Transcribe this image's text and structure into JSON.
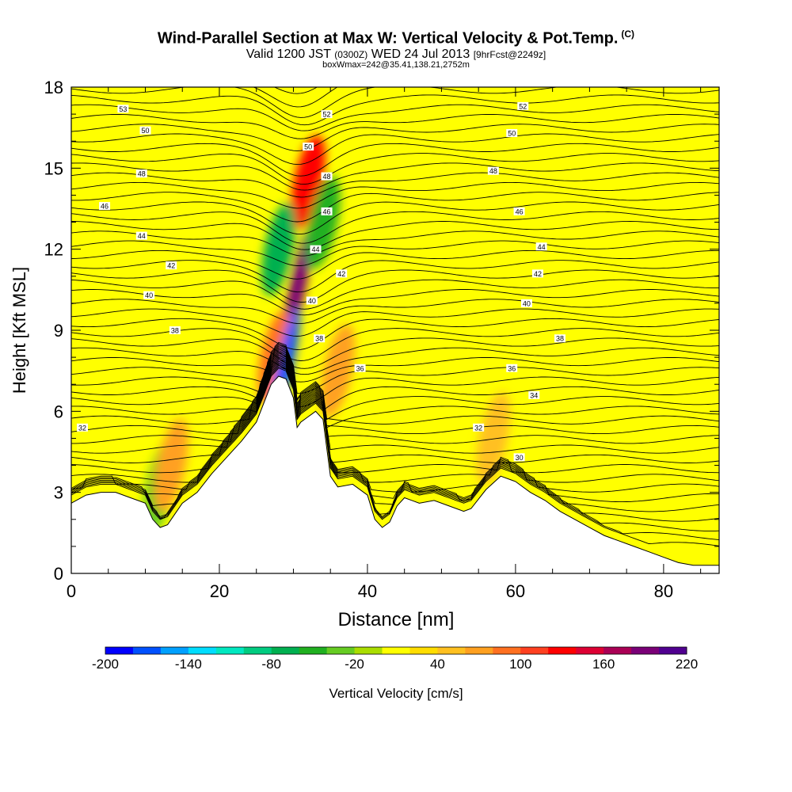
{
  "header": {
    "title": "Wind-Parallel Section at Max W: Vertical Velocity & Pot.Temp.",
    "copyright": "(C)",
    "valid_prefix": "Valid 1200 JST",
    "valid_utc": "(0300Z)",
    "valid_date": "WED 24 Jul 2013",
    "forecast": "[9hrFcst@2249z]",
    "box_info": "boxWmax=242@35.41,138.21,2752m"
  },
  "chart_data": {
    "type": "heatmap",
    "xlabel": "Distance [nm]",
    "ylabel": "Height [Kft MSL]",
    "xlim": [
      0,
      87.5
    ],
    "ylim": [
      0,
      18
    ],
    "xticks": [
      0,
      20,
      40,
      60,
      80
    ],
    "yticks": [
      0,
      3,
      6,
      9,
      12,
      15,
      18
    ],
    "colorbar": {
      "label": "Vertical Velocity [cm/s]",
      "tick_labels": [
        "-200",
        "-140",
        "-80",
        "-20",
        "40",
        "100",
        "160",
        "220"
      ],
      "colors": [
        "#0000ff",
        "#0050ff",
        "#00a0ff",
        "#00ddff",
        "#00e8c0",
        "#00cc80",
        "#00b050",
        "#20b020",
        "#66cc22",
        "#aadd00",
        "#ffff00",
        "#ffdd00",
        "#ffc020",
        "#ffa020",
        "#ff7020",
        "#ff4020",
        "#ff0000",
        "#dd0033",
        "#aa0055",
        "#7a0077",
        "#500090"
      ]
    },
    "terrain": [
      [
        0,
        2.6
      ],
      [
        2,
        2.9
      ],
      [
        4,
        3.0
      ],
      [
        6,
        3.0
      ],
      [
        8,
        2.8
      ],
      [
        10,
        2.6
      ],
      [
        11,
        2.0
      ],
      [
        12,
        1.7
      ],
      [
        13,
        1.8
      ],
      [
        14,
        2.2
      ],
      [
        15,
        2.6
      ],
      [
        17,
        3.0
      ],
      [
        19,
        3.7
      ],
      [
        21,
        4.3
      ],
      [
        23,
        4.9
      ],
      [
        25,
        5.6
      ],
      [
        26,
        6.3
      ],
      [
        27,
        7.0
      ],
      [
        28,
        7.3
      ],
      [
        29,
        7.2
      ],
      [
        30,
        6.5
      ],
      [
        30.5,
        5.4
      ],
      [
        31,
        5.6
      ],
      [
        32,
        5.8
      ],
      [
        33,
        6.0
      ],
      [
        34,
        5.7
      ],
      [
        35,
        3.6
      ],
      [
        36,
        3.2
      ],
      [
        38,
        3.3
      ],
      [
        40,
        2.9
      ],
      [
        41,
        2.0
      ],
      [
        42,
        1.7
      ],
      [
        43,
        1.9
      ],
      [
        44,
        2.5
      ],
      [
        45,
        2.8
      ],
      [
        47,
        2.6
      ],
      [
        49,
        2.7
      ],
      [
        51,
        2.5
      ],
      [
        53,
        2.3
      ],
      [
        54,
        2.4
      ],
      [
        56,
        3.1
      ],
      [
        58,
        3.6
      ],
      [
        60,
        3.4
      ],
      [
        62,
        3.0
      ],
      [
        64,
        2.7
      ],
      [
        66,
        2.3
      ],
      [
        68,
        2.0
      ],
      [
        70,
        1.7
      ],
      [
        72,
        1.4
      ],
      [
        74,
        1.2
      ],
      [
        76,
        1.0
      ],
      [
        78,
        0.8
      ],
      [
        80,
        0.6
      ],
      [
        82,
        0.4
      ],
      [
        84,
        0.3
      ],
      [
        87.5,
        0.3
      ]
    ],
    "velocity_features": [
      {
        "type": "updraft-core",
        "x": 30.5,
        "y": 10.5,
        "w": 180
      },
      {
        "type": "updraft",
        "x": 32,
        "y": 14.5,
        "w": 110
      },
      {
        "type": "updraft",
        "x": 27.5,
        "y": 8.0,
        "w": 70
      },
      {
        "type": "updraft",
        "x": 36,
        "y": 7.5,
        "w": 60
      },
      {
        "type": "downdraft",
        "x": 28.8,
        "y": 7.6,
        "w": -190
      },
      {
        "type": "downdraft",
        "x": 28,
        "y": 12,
        "w": -80
      },
      {
        "type": "downdraft",
        "x": 34,
        "y": 13,
        "w": -60
      },
      {
        "type": "downdraft",
        "x": 12,
        "y": 3.2,
        "w": -50
      },
      {
        "type": "updraft",
        "x": 13.5,
        "y": 4.0,
        "w": 50
      },
      {
        "type": "updraft",
        "x": 57,
        "y": 5.0,
        "w": 45
      }
    ],
    "theta_labels": [
      {
        "value": "32",
        "x": 1.5,
        "y": 5.4
      },
      {
        "value": "53",
        "x": 7,
        "y": 17.2
      },
      {
        "value": "50",
        "x": 10,
        "y": 16.4
      },
      {
        "value": "48",
        "x": 9.5,
        "y": 14.8
      },
      {
        "value": "46",
        "x": 4.5,
        "y": 13.6
      },
      {
        "value": "44",
        "x": 9.5,
        "y": 12.5
      },
      {
        "value": "42",
        "x": 13.5,
        "y": 11.4
      },
      {
        "value": "40",
        "x": 10.5,
        "y": 10.3
      },
      {
        "value": "38",
        "x": 14,
        "y": 9.0
      },
      {
        "value": "52",
        "x": 34.5,
        "y": 17.0
      },
      {
        "value": "50",
        "x": 32,
        "y": 15.8
      },
      {
        "value": "48",
        "x": 34.5,
        "y": 14.7
      },
      {
        "value": "46",
        "x": 34.5,
        "y": 13.4
      },
      {
        "value": "44",
        "x": 33,
        "y": 12.0
      },
      {
        "value": "42",
        "x": 36.5,
        "y": 11.1
      },
      {
        "value": "40",
        "x": 32.5,
        "y": 10.1
      },
      {
        "value": "38",
        "x": 33.5,
        "y": 8.7
      },
      {
        "value": "36",
        "x": 39,
        "y": 7.6
      },
      {
        "value": "52",
        "x": 61,
        "y": 17.3
      },
      {
        "value": "50",
        "x": 59.5,
        "y": 16.3
      },
      {
        "value": "48",
        "x": 57,
        "y": 14.9
      },
      {
        "value": "46",
        "x": 60.5,
        "y": 13.4
      },
      {
        "value": "44",
        "x": 63.5,
        "y": 12.1
      },
      {
        "value": "42",
        "x": 63,
        "y": 11.1
      },
      {
        "value": "40",
        "x": 61.5,
        "y": 10.0
      },
      {
        "value": "38",
        "x": 66,
        "y": 8.7
      },
      {
        "value": "36",
        "x": 59.5,
        "y": 7.6
      },
      {
        "value": "34",
        "x": 62.5,
        "y": 6.6
      },
      {
        "value": "32",
        "x": 55,
        "y": 5.4
      },
      {
        "value": "30",
        "x": 60.5,
        "y": 4.3
      }
    ]
  }
}
